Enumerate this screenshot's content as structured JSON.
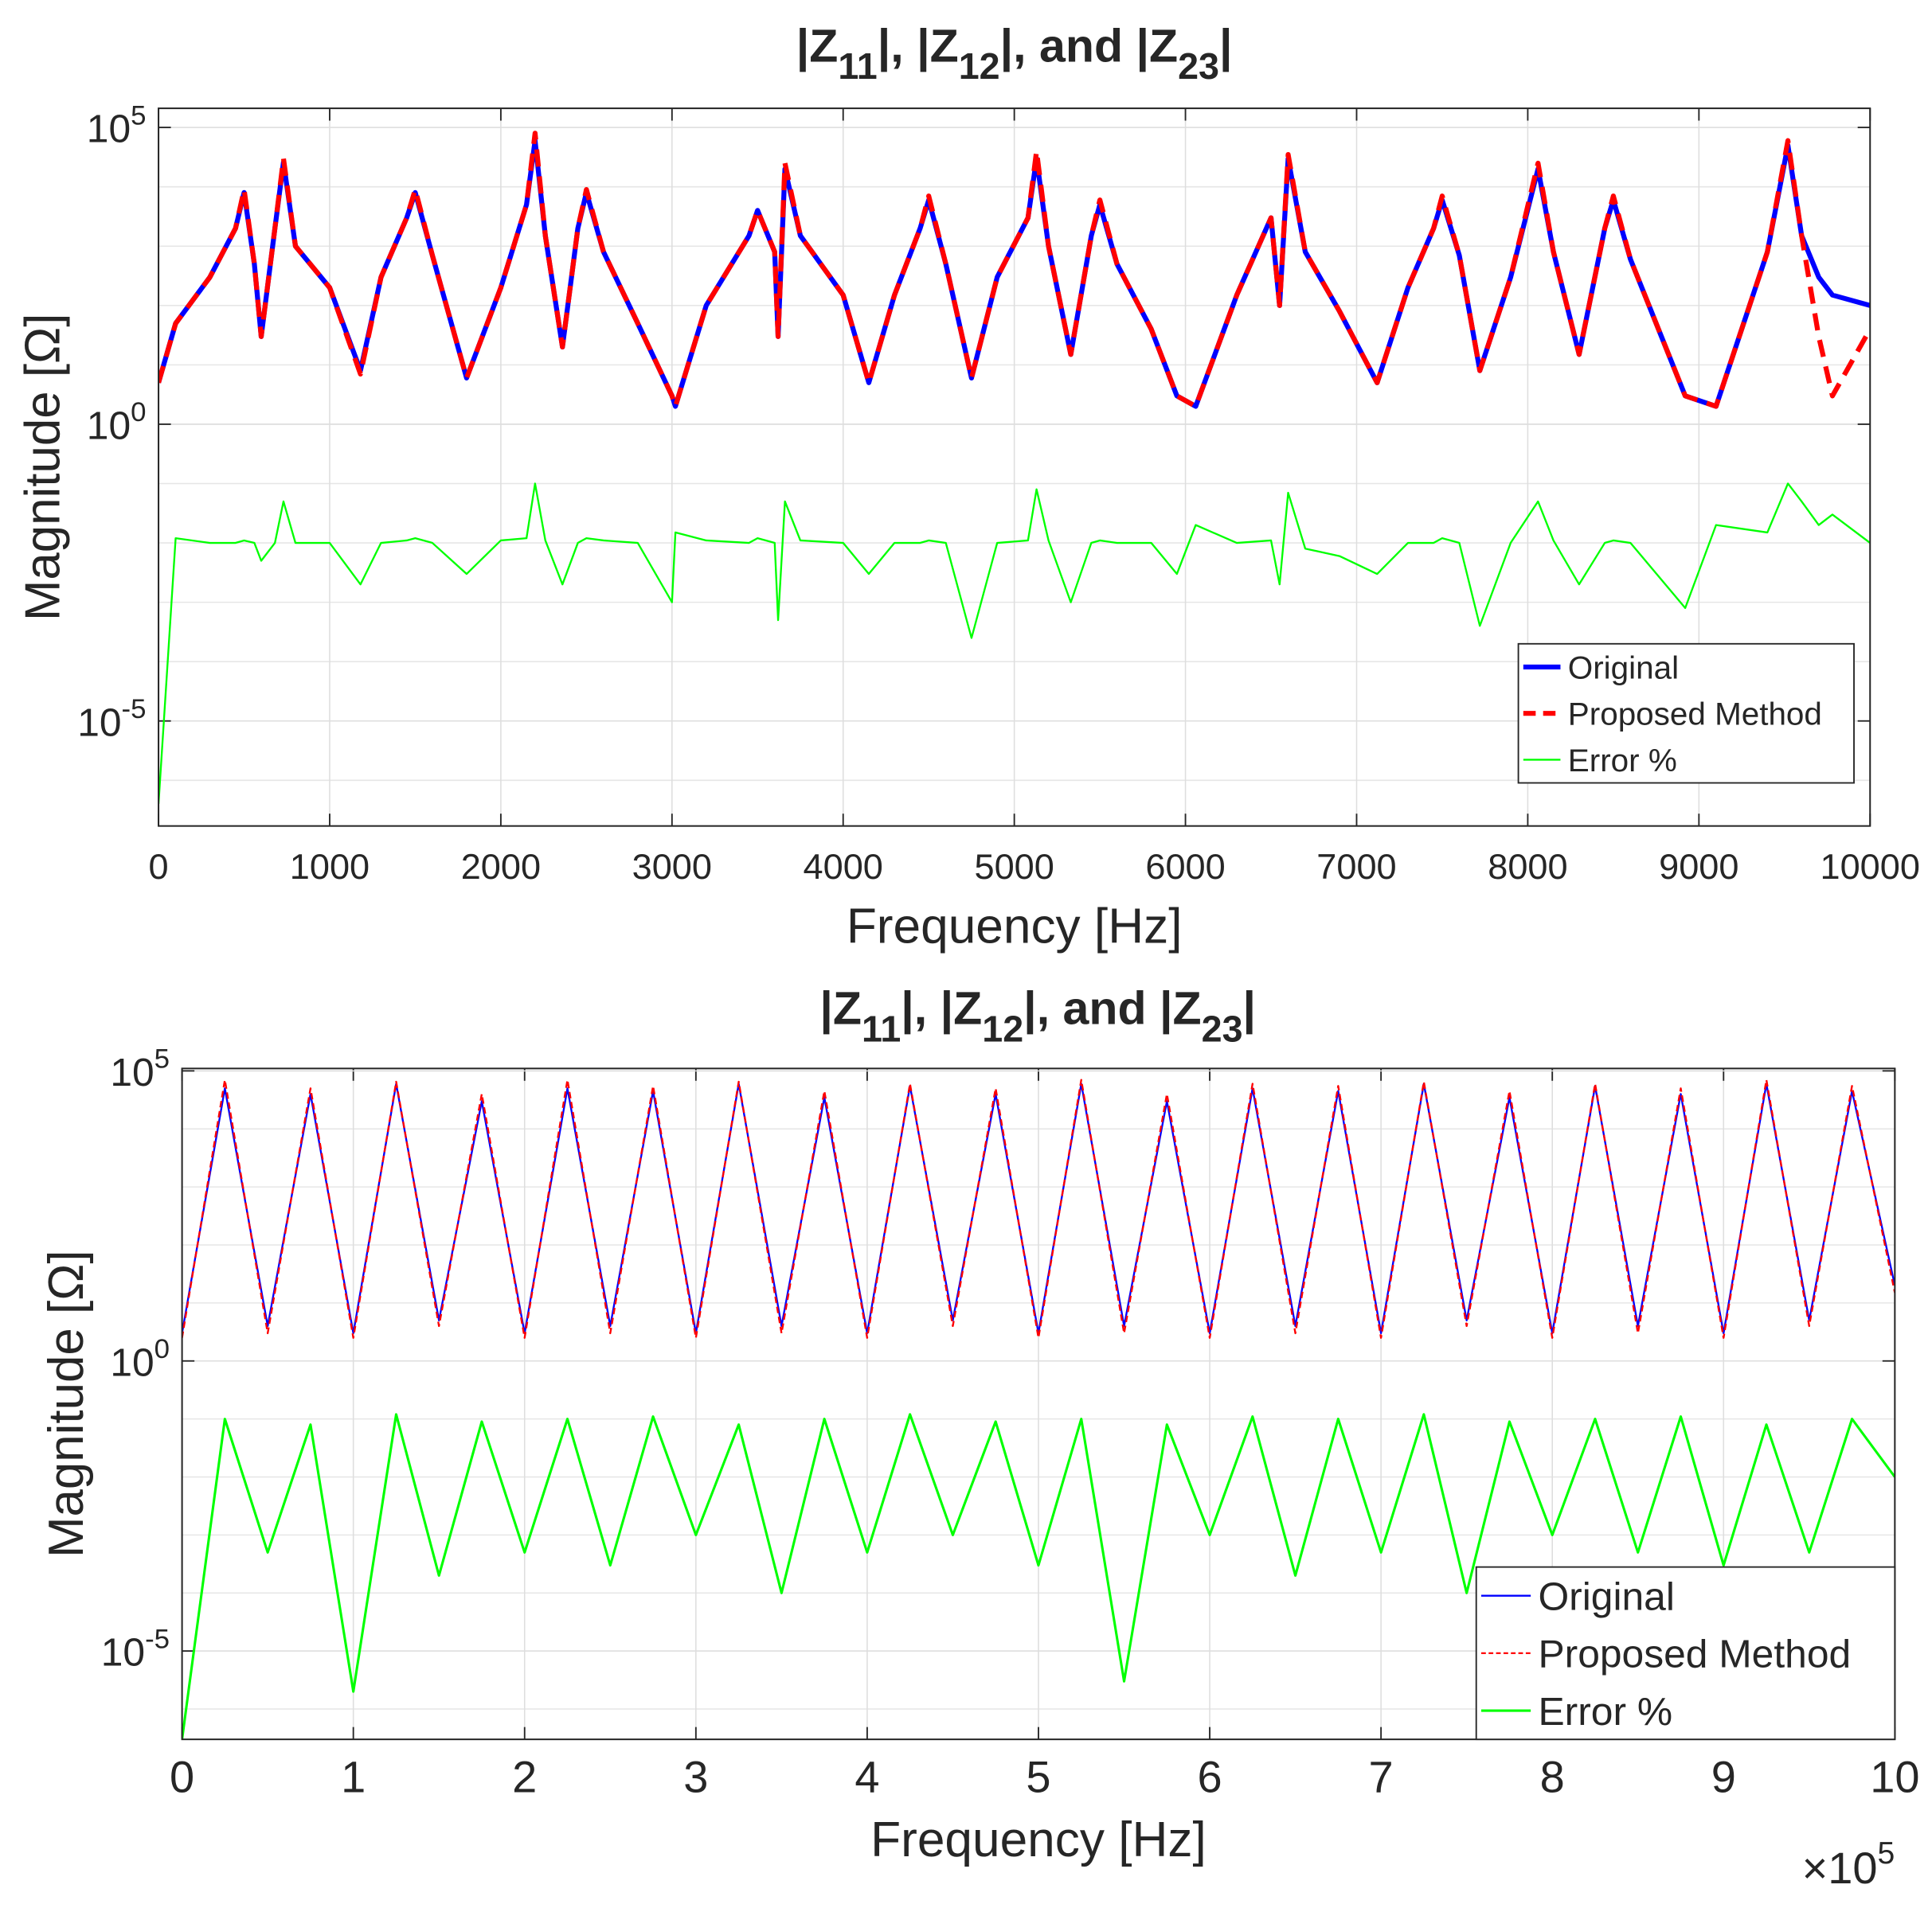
{
  "chart_data": [
    {
      "type": "line",
      "title": [
        "|Z",
        "11",
        "|, |Z",
        "12",
        "|, and |Z",
        "23",
        "|"
      ],
      "xlabel": "Frequency [Hz]",
      "ylabel": "Magnitude [Ω]",
      "yscale": "log",
      "grid": true,
      "legend": "southeast",
      "xlim": [
        0,
        10000
      ],
      "xticks": [
        0,
        1000,
        2000,
        3000,
        4000,
        5000,
        6000,
        7000,
        8000,
        9000,
        10000
      ],
      "ylim": [
        1.7e-07,
        210000
      ],
      "yticks": [
        {
          "value": 100000,
          "label": "10^5"
        },
        {
          "value": 1,
          "label": "10^0"
        },
        {
          "value": 1e-05,
          "label": "10^-5"
        }
      ],
      "x": [
        0,
        100,
        300,
        450,
        500,
        560,
        600,
        680,
        730,
        800,
        1000,
        1180,
        1300,
        1450,
        1500,
        1600,
        1800,
        2000,
        2150,
        2200,
        2260,
        2360,
        2450,
        2500,
        2600,
        2800,
        3000,
        3020,
        3200,
        3450,
        3500,
        3600,
        3620,
        3660,
        3750,
        4000,
        4150,
        4300,
        4450,
        4500,
        4600,
        4750,
        4900,
        5080,
        5130,
        5200,
        5330,
        5450,
        5500,
        5600,
        5800,
        5950,
        6060,
        6300,
        6500,
        6550,
        6600,
        6700,
        6900,
        7120,
        7300,
        7450,
        7500,
        7600,
        7720,
        7900,
        8060,
        8150,
        8300,
        8450,
        8500,
        8600,
        8920,
        9100,
        9400,
        9520,
        9600,
        9700,
        9780,
        10000
      ],
      "series": [
        {
          "name": "Original",
          "color": "#0000ff",
          "line_width": 4,
          "line_style": "solid",
          "values": [
            5,
            50,
            300,
            2000,
            8000,
            500,
            30,
            2000,
            26000,
            1000,
            200,
            8,
            300,
            3000,
            8000,
            700,
            6,
            200,
            5000,
            60000,
            1500,
            20,
            2000,
            8000,
            800,
            50,
            3,
            2,
            100,
            1500,
            4000,
            800,
            30,
            20000,
            1500,
            150,
            5,
            150,
            2000,
            6000,
            500,
            6,
            300,
            3000,
            30000,
            1000,
            15,
            1500,
            5000,
            500,
            40,
            3,
            2,
            150,
            3000,
            100,
            30000,
            800,
            80,
            5,
            200,
            2000,
            6000,
            700,
            8,
            300,
            20000,
            800,
            15,
            2000,
            6000,
            600,
            3,
            2,
            800,
            50000,
            1500,
            300,
            150,
            100
          ]
        },
        {
          "name": "Proposed Method",
          "color": "#ff0000",
          "line_width": 4,
          "line_style": "dashed",
          "values": [
            5,
            50,
            300,
            2000,
            9000,
            500,
            30,
            2000,
            30000,
            1000,
            200,
            7,
            300,
            3000,
            9000,
            700,
            6,
            200,
            5000,
            80000,
            1500,
            20,
            2000,
            9000,
            800,
            50,
            3,
            2,
            100,
            1500,
            4000,
            800,
            30,
            25000,
            1500,
            150,
            5,
            150,
            2000,
            7000,
            500,
            6,
            300,
            3000,
            40000,
            1000,
            15,
            1500,
            6000,
            500,
            40,
            3,
            2,
            150,
            3000,
            100,
            35000,
            800,
            80,
            5,
            200,
            2000,
            7000,
            700,
            8,
            300,
            25000,
            800,
            15,
            2000,
            7000,
            600,
            3,
            2,
            800,
            60000,
            1500,
            30,
            3,
            40
          ]
        },
        {
          "name": "Error %",
          "color": "#00ff00",
          "line_width": 1.5,
          "line_style": "solid",
          "values": [
            4e-07,
            0.012,
            0.01,
            0.01,
            0.011,
            0.01,
            0.005,
            0.01,
            0.05,
            0.01,
            0.01,
            0.002,
            0.01,
            0.011,
            0.012,
            0.01,
            0.003,
            0.011,
            0.012,
            0.1,
            0.011,
            0.002,
            0.01,
            0.012,
            0.011,
            0.01,
            0.001,
            0.015,
            0.011,
            0.01,
            0.012,
            0.01,
            0.0005,
            0.05,
            0.011,
            0.01,
            0.003,
            0.01,
            0.01,
            0.011,
            0.01,
            0.00025,
            0.01,
            0.011,
            0.08,
            0.011,
            0.001,
            0.01,
            0.011,
            0.01,
            0.01,
            0.003,
            0.02,
            0.01,
            0.011,
            0.002,
            0.07,
            0.008,
            0.006,
            0.003,
            0.01,
            0.01,
            0.012,
            0.01,
            0.0004,
            0.01,
            0.05,
            0.011,
            0.002,
            0.01,
            0.011,
            0.01,
            0.0008,
            0.02,
            0.015,
            0.1,
            0.05,
            0.02,
            0.03,
            0.01
          ]
        }
      ]
    },
    {
      "type": "line",
      "title": [
        "|Z",
        "11",
        "|, |Z",
        "12",
        "|, and |Z",
        "23",
        "|"
      ],
      "xlabel": "Frequency [Hz]",
      "ylabel": "Magnitude [Ω]",
      "x_exponent_label": "×10^5",
      "yscale": "log",
      "grid": true,
      "legend": "southeast",
      "xlim": [
        0,
        1000000
      ],
      "xticks": [
        0,
        {
          "value": 100000,
          "label": "1"
        },
        {
          "value": 200000,
          "label": "2"
        },
        {
          "value": 300000,
          "label": "3"
        },
        {
          "value": 400000,
          "label": "4"
        },
        {
          "value": 500000,
          "label": "5"
        },
        {
          "value": 600000,
          "label": "6"
        },
        {
          "value": 700000,
          "label": "7"
        },
        {
          "value": 800000,
          "label": "8"
        },
        {
          "value": 900000,
          "label": "9"
        },
        {
          "value": 1000000,
          "label": "10"
        }
      ],
      "ylim": [
        3e-07,
        110000
      ],
      "yticks": [
        {
          "value": 100000,
          "label": "10^5"
        },
        {
          "value": 1,
          "label": "10^0"
        },
        {
          "value": 1e-05,
          "label": "10^-5"
        }
      ],
      "x": [
        0,
        25000,
        50000,
        75000,
        100000,
        125000,
        150000,
        175000,
        200000,
        225000,
        250000,
        275000,
        300000,
        325000,
        350000,
        375000,
        400000,
        425000,
        450000,
        475000,
        500000,
        525000,
        550000,
        575000,
        600000,
        625000,
        650000,
        675000,
        700000,
        725000,
        750000,
        775000,
        800000,
        825000,
        850000,
        875000,
        900000,
        925000,
        950000,
        975000,
        1000000
      ],
      "series": [
        {
          "name": "Original",
          "color": "#0000ff",
          "line_width": 1.5,
          "line_style": "solid",
          "values": [
            3,
            50000,
            4,
            40000,
            3,
            60000,
            5,
            30000,
            3,
            50000,
            4,
            45000,
            3,
            60000,
            4,
            35000,
            3,
            55000,
            5,
            40000,
            3,
            60000,
            4,
            30000,
            3,
            50000,
            4,
            45000,
            3,
            60000,
            5,
            35000,
            3,
            55000,
            4,
            40000,
            3,
            60000,
            5,
            45000,
            20
          ]
        },
        {
          "name": "Proposed Method",
          "color": "#ff0000",
          "line_width": 1.5,
          "line_style": "dashed",
          "values": [
            2.5,
            70000,
            3,
            50000,
            2.5,
            65000,
            4,
            40000,
            2.5,
            70000,
            3,
            55000,
            2.5,
            65000,
            3,
            45000,
            2.5,
            60000,
            4,
            50000,
            2.5,
            70000,
            3,
            40000,
            2.5,
            60000,
            3,
            55000,
            2.5,
            65000,
            4,
            45000,
            2.5,
            60000,
            3,
            50000,
            2.5,
            70000,
            4,
            55000,
            15
          ]
        },
        {
          "name": "Error %",
          "color": "#00ff00",
          "line_width": 2,
          "line_style": "solid",
          "values": [
            3e-07,
            0.1,
            0.0005,
            0.08,
            2e-06,
            0.12,
            0.0002,
            0.09,
            0.0005,
            0.1,
            0.0003,
            0.11,
            0.001,
            0.08,
            0.0001,
            0.1,
            0.0005,
            0.12,
            0.001,
            0.09,
            0.0003,
            0.1,
            3e-06,
            0.08,
            0.001,
            0.11,
            0.0002,
            0.1,
            0.0005,
            0.12,
            0.0001,
            0.09,
            0.001,
            0.1,
            0.0005,
            0.11,
            0.0003,
            0.08,
            0.0005,
            0.1,
            0.01
          ]
        }
      ]
    }
  ]
}
